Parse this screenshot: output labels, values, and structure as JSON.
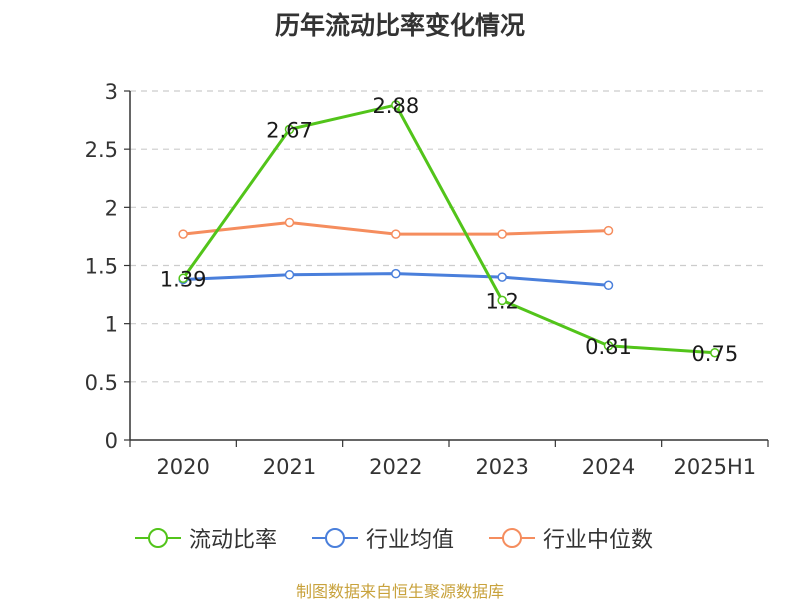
{
  "title": "历年流动比率变化情况",
  "source": "制图数据来自恒生聚源数据库",
  "chart_data": {
    "type": "line",
    "categories": [
      "2020",
      "2021",
      "2022",
      "2023",
      "2024",
      "2025H1"
    ],
    "ylim": [
      0,
      3
    ],
    "yticks": [
      {
        "value": 0,
        "label": "0"
      },
      {
        "value": 0.5,
        "label": "0.5"
      },
      {
        "value": 1,
        "label": "1"
      },
      {
        "value": 1.5,
        "label": "1.5"
      },
      {
        "value": 2,
        "label": "2"
      },
      {
        "value": 2.5,
        "label": "2.5"
      },
      {
        "value": 3,
        "label": "3"
      }
    ],
    "grid": true,
    "legend_position": "bottom",
    "series": [
      {
        "name": "流动比率",
        "color": "#52c41a",
        "values": [
          1.39,
          2.67,
          2.88,
          1.2,
          0.81,
          0.75
        ],
        "labels": [
          "1.39",
          "2.67",
          "2.88",
          "1.2",
          "0.81",
          "0.75"
        ]
      },
      {
        "name": "行业均值",
        "color": "#4a7fdb",
        "values": [
          1.38,
          1.42,
          1.43,
          1.4,
          1.33,
          null
        ]
      },
      {
        "name": "行业中位数",
        "color": "#f58d5e",
        "values": [
          1.77,
          1.87,
          1.77,
          1.77,
          1.8,
          null
        ]
      }
    ]
  }
}
